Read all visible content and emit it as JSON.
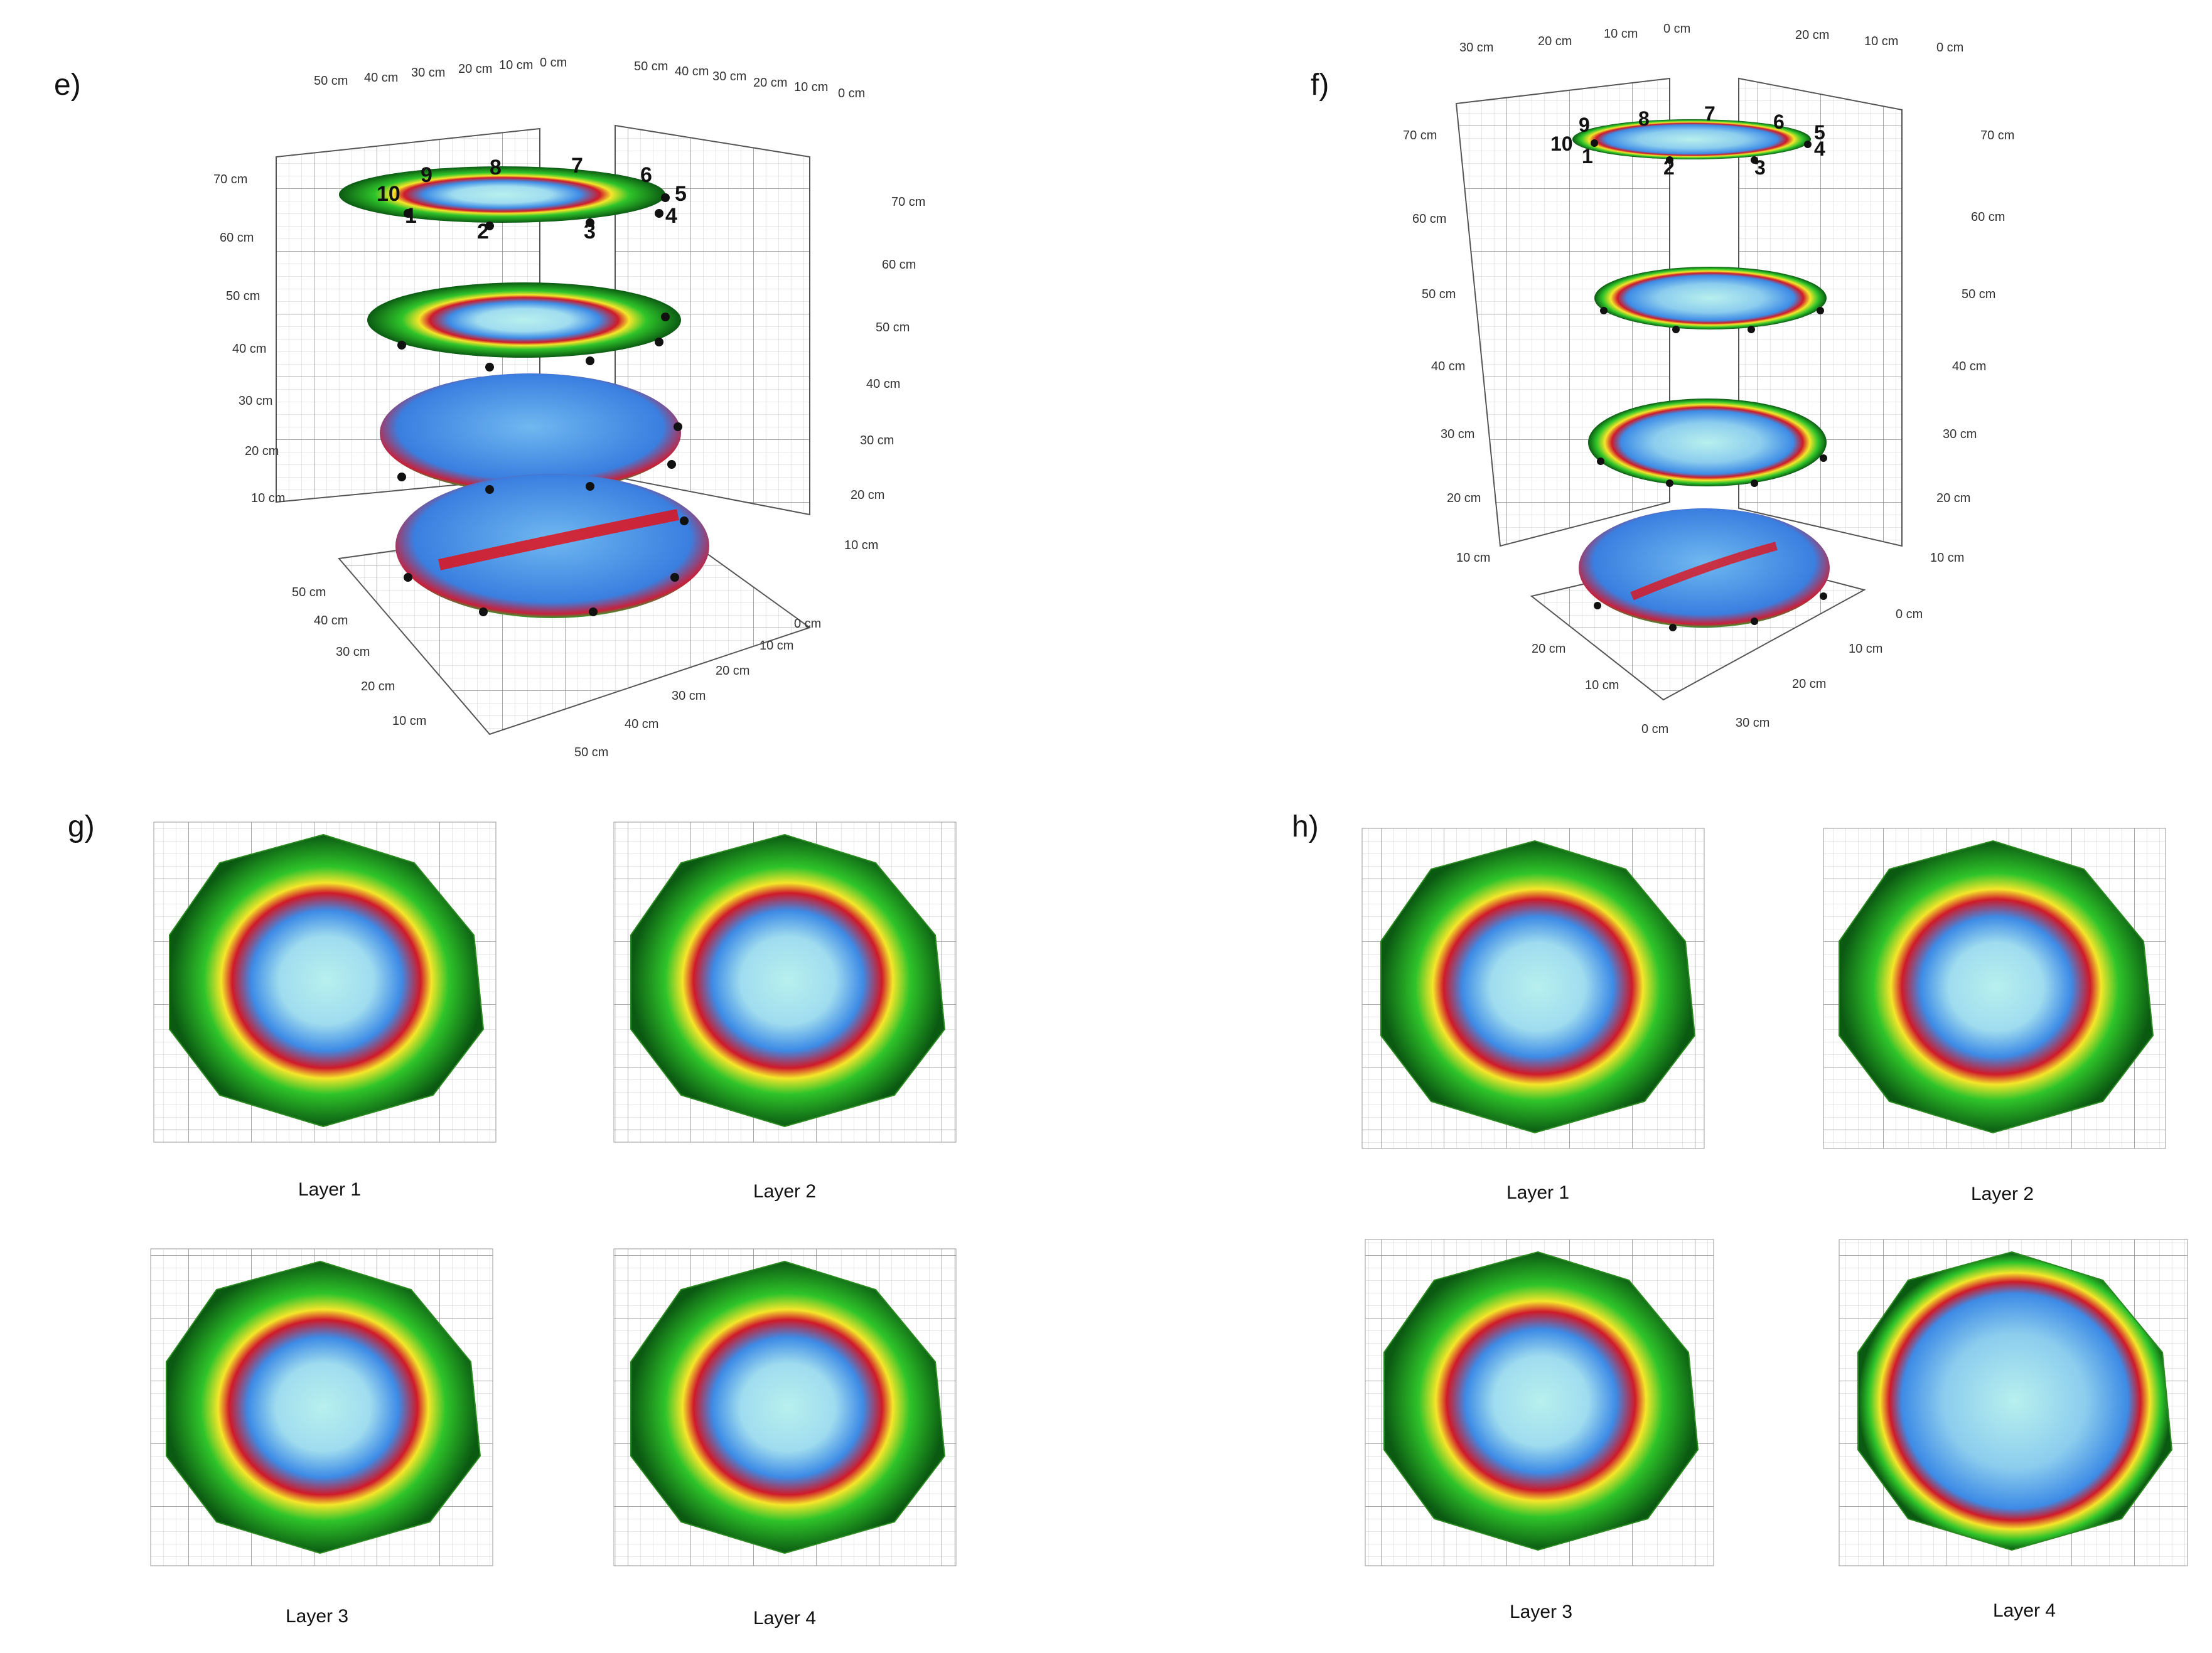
{
  "panels": {
    "e": {
      "label": "e)",
      "axis_back_left": [
        "50 cm",
        "40 cm",
        "30 cm",
        "20 cm",
        "10 cm",
        "0 cm"
      ],
      "axis_back_right": [
        "50 cm",
        "40 cm",
        "30 cm",
        "20 cm",
        "10 cm",
        "0 cm"
      ],
      "axis_left_z": [
        "70 cm",
        "60 cm",
        "50 cm",
        "40 cm",
        "30 cm",
        "20 cm",
        "10 cm"
      ],
      "axis_right_z": [
        "70 cm",
        "60 cm",
        "50 cm",
        "40 cm",
        "30 cm",
        "20 cm",
        "10 cm"
      ],
      "axis_floor_left": [
        "50 cm",
        "40 cm",
        "30 cm",
        "20 cm",
        "10 cm"
      ],
      "axis_floor_right": [
        "0 cm",
        "10 cm",
        "20 cm",
        "30 cm",
        "40 cm",
        "50 cm"
      ],
      "inner_ticks": [
        "70 cm",
        "60 cm",
        "50 cm",
        "40 cm",
        "30 cm",
        "20 cm",
        "10 cm",
        "0 cm"
      ]
    },
    "f": {
      "label": "f)",
      "axis_back_left": [
        "30 cm",
        "20 cm",
        "10 cm",
        "0 cm"
      ],
      "axis_back_right": [
        "20 cm",
        "10 cm",
        "0 cm"
      ],
      "axis_left_z": [
        "70 cm",
        "60 cm",
        "50 cm",
        "40 cm",
        "30 cm",
        "20 cm",
        "10 cm"
      ],
      "axis_right_z": [
        "70 cm",
        "60 cm",
        "50 cm",
        "40 cm",
        "30 cm",
        "20 cm",
        "10 cm"
      ],
      "axis_floor_left": [
        "20 cm",
        "10 cm",
        "0 cm"
      ],
      "axis_floor_right": [
        "0 cm",
        "10 cm",
        "20 cm",
        "30 cm"
      ],
      "inner_ticks": [
        "70 cm",
        "60 cm",
        "50 cm",
        "40 cm",
        "30 cm",
        "20 cm",
        "10 cm",
        "0 cm"
      ]
    },
    "g": {
      "label": "g)",
      "layers": [
        "Layer 1",
        "Layer 2",
        "Layer 3",
        "Layer 4"
      ]
    },
    "h": {
      "label": "h)",
      "layers": [
        "Layer 1",
        "Layer 2",
        "Layer 3",
        "Layer 4"
      ]
    }
  },
  "sensor_labels": [
    "1",
    "2",
    "3",
    "4",
    "5",
    "6",
    "7",
    "8",
    "9",
    "10"
  ],
  "colors": {
    "core": "#b0ecec",
    "inner": "#3d8be6",
    "ring": "#e0101a",
    "mid": "#f5e62a",
    "outer": "#2fc42a",
    "edge": "#0b4a10"
  }
}
